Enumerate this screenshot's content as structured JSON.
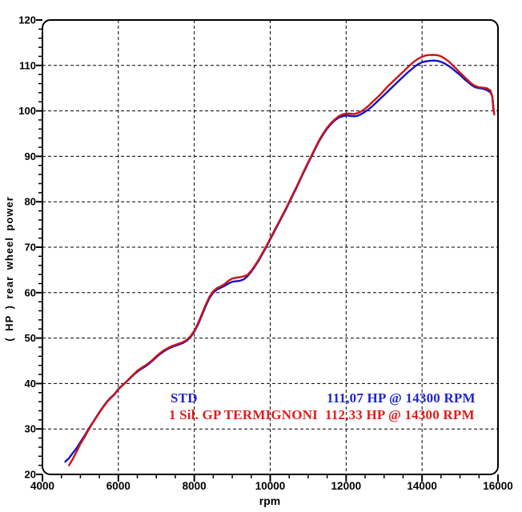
{
  "chart_data": {
    "type": "line",
    "title": "",
    "xlabel": "rpm",
    "ylabel": "( HP )  rear wheel power",
    "xlim": [
      4000,
      16000
    ],
    "ylim": [
      20,
      120
    ],
    "x_tick_labels": [
      "4000",
      "6000",
      "8000",
      "10000",
      "12000",
      "14000",
      "16000"
    ],
    "x_major_ticks": [
      4000,
      6000,
      8000,
      10000,
      12000,
      14000,
      16000
    ],
    "x_minor_step": 500,
    "y_tick_labels": [
      "120",
      "110",
      "100",
      "90",
      "80",
      "70",
      "60",
      "50",
      "40",
      "30",
      "20"
    ],
    "y_major_ticks": [
      20,
      30,
      40,
      50,
      60,
      70,
      80,
      90,
      100,
      110,
      120
    ],
    "y_minor_step": 2,
    "grid": "dashed",
    "legend_position": "inside-lower-middle",
    "legend": [
      {
        "name": "STD",
        "value": "111,07 HP @ 14300 RPM",
        "color": "#2026cf"
      },
      {
        "name": "1 Sil. GP TERMIGNONI",
        "value": "112,33 HP @ 14300 RPM",
        "color": "#e01d1d"
      }
    ],
    "series": [
      {
        "name": "STD",
        "color": "#1414c8",
        "peak_label": "111,07 HP @ 14300 RPM",
        "points": [
          [
            4600,
            22.8
          ],
          [
            4700,
            23.6
          ],
          [
            4800,
            24.7
          ],
          [
            4900,
            25.8
          ],
          [
            5000,
            27.1
          ],
          [
            5100,
            28.4
          ],
          [
            5200,
            29.8
          ],
          [
            5300,
            31.1
          ],
          [
            5400,
            32.4
          ],
          [
            5500,
            33.7
          ],
          [
            5600,
            34.9
          ],
          [
            5700,
            36.0
          ],
          [
            5800,
            36.9
          ],
          [
            5900,
            37.7
          ],
          [
            6000,
            38.8
          ],
          [
            6100,
            39.6
          ],
          [
            6200,
            40.3
          ],
          [
            6300,
            41.1
          ],
          [
            6400,
            41.9
          ],
          [
            6500,
            42.6
          ],
          [
            6600,
            43.2
          ],
          [
            6700,
            43.7
          ],
          [
            6800,
            44.3
          ],
          [
            6900,
            45.0
          ],
          [
            7000,
            45.8
          ],
          [
            7100,
            46.5
          ],
          [
            7200,
            47.1
          ],
          [
            7300,
            47.6
          ],
          [
            7400,
            48.0
          ],
          [
            7500,
            48.3
          ],
          [
            7600,
            48.6
          ],
          [
            7700,
            48.9
          ],
          [
            7800,
            49.4
          ],
          [
            7900,
            50.2
          ],
          [
            8000,
            51.4
          ],
          [
            8100,
            53.0
          ],
          [
            8200,
            55.0
          ],
          [
            8300,
            57.0
          ],
          [
            8400,
            58.8
          ],
          [
            8500,
            60.0
          ],
          [
            8600,
            60.7
          ],
          [
            8700,
            61.1
          ],
          [
            8800,
            61.5
          ],
          [
            8900,
            62.0
          ],
          [
            9000,
            62.4
          ],
          [
            9100,
            62.5
          ],
          [
            9200,
            62.6
          ],
          [
            9300,
            62.9
          ],
          [
            9400,
            63.6
          ],
          [
            9500,
            64.6
          ],
          [
            9600,
            65.8
          ],
          [
            9700,
            67.1
          ],
          [
            9800,
            68.6
          ],
          [
            9900,
            70.1
          ],
          [
            10000,
            71.7
          ],
          [
            10100,
            73.3
          ],
          [
            10200,
            74.9
          ],
          [
            10300,
            76.5
          ],
          [
            10400,
            78.1
          ],
          [
            10500,
            79.8
          ],
          [
            10600,
            81.5
          ],
          [
            10700,
            83.2
          ],
          [
            10800,
            85.0
          ],
          [
            10900,
            86.8
          ],
          [
            11000,
            88.5
          ],
          [
            11100,
            90.2
          ],
          [
            11200,
            91.9
          ],
          [
            11300,
            93.5
          ],
          [
            11400,
            94.9
          ],
          [
            11500,
            96.1
          ],
          [
            11600,
            97.1
          ],
          [
            11700,
            97.9
          ],
          [
            11800,
            98.5
          ],
          [
            11900,
            98.8
          ],
          [
            12000,
            99.0
          ],
          [
            12100,
            98.9
          ],
          [
            12200,
            98.8
          ],
          [
            12300,
            98.9
          ],
          [
            12400,
            99.3
          ],
          [
            12500,
            99.8
          ],
          [
            12600,
            100.4
          ],
          [
            12700,
            101.1
          ],
          [
            12800,
            101.9
          ],
          [
            12900,
            102.7
          ],
          [
            13000,
            103.5
          ],
          [
            13100,
            104.3
          ],
          [
            13200,
            105.1
          ],
          [
            13300,
            105.9
          ],
          [
            13400,
            106.7
          ],
          [
            13500,
            107.5
          ],
          [
            13600,
            108.3
          ],
          [
            13700,
            109.0
          ],
          [
            13800,
            109.7
          ],
          [
            13900,
            110.3
          ],
          [
            14000,
            110.7
          ],
          [
            14100,
            110.9
          ],
          [
            14200,
            111.0
          ],
          [
            14300,
            111.07
          ],
          [
            14400,
            111.0
          ],
          [
            14500,
            110.8
          ],
          [
            14600,
            110.4
          ],
          [
            14700,
            109.9
          ],
          [
            14800,
            109.3
          ],
          [
            14900,
            108.6
          ],
          [
            15000,
            107.9
          ],
          [
            15100,
            107.1
          ],
          [
            15200,
            106.4
          ],
          [
            15300,
            105.7
          ],
          [
            15400,
            105.2
          ],
          [
            15500,
            105.0
          ],
          [
            15600,
            104.9
          ],
          [
            15700,
            104.6
          ],
          [
            15800,
            104.1
          ],
          [
            15850,
            103.2
          ],
          [
            15880,
            100.3
          ]
        ]
      },
      {
        "name": "1 Sil. GP TERMIGNONI",
        "color": "#cc1414",
        "peak_label": "112,33 HP @ 14300 RPM",
        "points": [
          [
            4700,
            22.0
          ],
          [
            4800,
            23.4
          ],
          [
            4900,
            25.0
          ],
          [
            5000,
            26.7
          ],
          [
            5100,
            28.1
          ],
          [
            5200,
            29.6
          ],
          [
            5300,
            31.0
          ],
          [
            5400,
            32.3
          ],
          [
            5500,
            33.6
          ],
          [
            5600,
            34.8
          ],
          [
            5700,
            35.9
          ],
          [
            5800,
            36.8
          ],
          [
            5900,
            37.6
          ],
          [
            6000,
            38.7
          ],
          [
            6100,
            39.5
          ],
          [
            6200,
            40.3
          ],
          [
            6300,
            41.2
          ],
          [
            6400,
            42.0
          ],
          [
            6500,
            42.8
          ],
          [
            6600,
            43.4
          ],
          [
            6700,
            43.9
          ],
          [
            6800,
            44.5
          ],
          [
            6900,
            45.2
          ],
          [
            7000,
            46.0
          ],
          [
            7100,
            46.7
          ],
          [
            7200,
            47.3
          ],
          [
            7300,
            47.8
          ],
          [
            7400,
            48.2
          ],
          [
            7500,
            48.5
          ],
          [
            7600,
            48.8
          ],
          [
            7700,
            49.1
          ],
          [
            7800,
            49.6
          ],
          [
            7900,
            50.4
          ],
          [
            8000,
            51.6
          ],
          [
            8100,
            53.3
          ],
          [
            8200,
            55.3
          ],
          [
            8300,
            57.3
          ],
          [
            8400,
            59.1
          ],
          [
            8500,
            60.3
          ],
          [
            8600,
            61.0
          ],
          [
            8700,
            61.4
          ],
          [
            8800,
            61.9
          ],
          [
            8900,
            62.6
          ],
          [
            9000,
            63.1
          ],
          [
            9100,
            63.3
          ],
          [
            9200,
            63.4
          ],
          [
            9300,
            63.6
          ],
          [
            9400,
            63.9
          ],
          [
            9500,
            64.8
          ],
          [
            9600,
            66.0
          ],
          [
            9700,
            67.3
          ],
          [
            9800,
            68.8
          ],
          [
            9900,
            70.3
          ],
          [
            10000,
            71.9
          ],
          [
            10100,
            73.5
          ],
          [
            10200,
            75.1
          ],
          [
            10300,
            76.7
          ],
          [
            10400,
            78.3
          ],
          [
            10500,
            80.0
          ],
          [
            10600,
            81.7
          ],
          [
            10700,
            83.4
          ],
          [
            10800,
            85.2
          ],
          [
            10900,
            87.0
          ],
          [
            11000,
            88.7
          ],
          [
            11100,
            90.4
          ],
          [
            11200,
            92.1
          ],
          [
            11300,
            93.7
          ],
          [
            11400,
            95.1
          ],
          [
            11500,
            96.3
          ],
          [
            11600,
            97.3
          ],
          [
            11700,
            98.1
          ],
          [
            11800,
            98.8
          ],
          [
            11900,
            99.2
          ],
          [
            12000,
            99.4
          ],
          [
            12100,
            99.4
          ],
          [
            12200,
            99.3
          ],
          [
            12300,
            99.5
          ],
          [
            12400,
            99.9
          ],
          [
            12500,
            100.5
          ],
          [
            12600,
            101.2
          ],
          [
            12700,
            102.0
          ],
          [
            12800,
            102.8
          ],
          [
            12900,
            103.6
          ],
          [
            13000,
            104.5
          ],
          [
            13100,
            105.4
          ],
          [
            13200,
            106.2
          ],
          [
            13300,
            107.0
          ],
          [
            13400,
            107.8
          ],
          [
            13500,
            108.6
          ],
          [
            13600,
            109.4
          ],
          [
            13700,
            110.2
          ],
          [
            13800,
            110.9
          ],
          [
            13900,
            111.5
          ],
          [
            14000,
            111.9
          ],
          [
            14100,
            112.2
          ],
          [
            14200,
            112.3
          ],
          [
            14300,
            112.33
          ],
          [
            14400,
            112.25
          ],
          [
            14500,
            112.0
          ],
          [
            14600,
            111.5
          ],
          [
            14700,
            110.9
          ],
          [
            14800,
            110.1
          ],
          [
            14900,
            109.3
          ],
          [
            15000,
            108.4
          ],
          [
            15100,
            107.6
          ],
          [
            15200,
            106.8
          ],
          [
            15300,
            106.0
          ],
          [
            15400,
            105.5
          ],
          [
            15500,
            105.2
          ],
          [
            15600,
            105.1
          ],
          [
            15700,
            105.0
          ],
          [
            15800,
            104.5
          ],
          [
            15850,
            103.2
          ],
          [
            15900,
            99.2
          ]
        ]
      }
    ],
    "frame_color": "#000000",
    "grid_color": "#000000",
    "background": "#ffffff"
  }
}
